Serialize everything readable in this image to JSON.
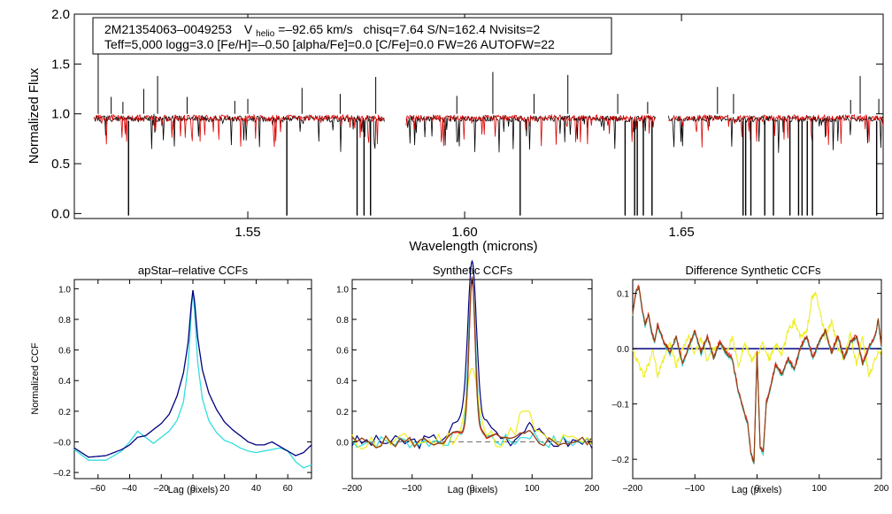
{
  "colors": {
    "spectrum": "#000000",
    "model": "#dd0000",
    "ccf_navy": "#00007f",
    "ccf_cyan": "#33dddd",
    "ccf_yellow": "#eeee22",
    "ccf_red": "#ee2222",
    "ccf_brown": "#8b4513",
    "zero_line": "#777777"
  },
  "chart_data": [
    {
      "type": "line",
      "id": "spectrum",
      "title": "",
      "xlabel": "Wavelength (microns)",
      "ylabel": "Normalized Flux",
      "xlim": [
        1.51,
        1.6965
      ],
      "ylim": [
        -0.05,
        2.0
      ],
      "xticks": [
        {
          "value": 1.55,
          "label": "1.55"
        },
        {
          "value": 1.6,
          "label": "1.60"
        },
        {
          "value": 1.65,
          "label": "1.65"
        }
      ],
      "yticks": [
        {
          "value": 0.0,
          "label": "0.0"
        },
        {
          "value": 0.5,
          "label": "0.5"
        },
        {
          "value": 1.0,
          "label": "1.0"
        },
        {
          "value": 1.5,
          "label": "1.5"
        },
        {
          "value": 2.0,
          "label": "2.0"
        }
      ],
      "info": {
        "star_id": "2M21354063–0049253",
        "v_prefix": "V",
        "v_sub": "helio",
        "v_value": "=–92.65 km/s",
        "rest_line1": "chisq=7.64  S/N=162.4  Nvisits=2",
        "line2": "Teff=5,000 logg=3.0 [Fe/H]=–0.50 [alpha/Fe]=0.0 [C/Fe]=0.0 FW=26 AUTOFW=22"
      },
      "segments": [
        [
          1.5145,
          1.5815
        ],
        [
          1.5865,
          1.644
        ],
        [
          1.647,
          1.6965
        ]
      ],
      "series": [
        {
          "name": "observed spectrum",
          "color": "spectrum",
          "continuum": 0.95
        },
        {
          "name": "best-fit model",
          "color": "model",
          "continuum": 0.96
        }
      ],
      "deep_lines": [
        1.5225,
        1.559,
        1.5752,
        1.5768,
        1.5783,
        1.6128,
        1.637,
        1.6392,
        1.6398,
        1.6412,
        1.6432,
        1.6642,
        1.6648,
        1.666,
        1.6692,
        1.6712,
        1.675,
        1.677,
        1.6778,
        1.679,
        1.6802,
        1.695
      ],
      "spikes": [
        {
          "x": 1.5155,
          "y": 1.8
        },
        {
          "x": 1.5185,
          "y": 1.17
        },
        {
          "x": 1.5212,
          "y": 1.12
        },
        {
          "x": 1.526,
          "y": 1.25
        },
        {
          "x": 1.5292,
          "y": 1.38
        },
        {
          "x": 1.536,
          "y": 1.17
        },
        {
          "x": 1.547,
          "y": 1.13
        },
        {
          "x": 1.55,
          "y": 1.15
        },
        {
          "x": 1.5625,
          "y": 1.26
        },
        {
          "x": 1.5713,
          "y": 1.2
        },
        {
          "x": 1.5795,
          "y": 1.37
        },
        {
          "x": 1.5982,
          "y": 1.18
        },
        {
          "x": 1.6065,
          "y": 1.42
        },
        {
          "x": 1.616,
          "y": 1.2
        },
        {
          "x": 1.6238,
          "y": 1.39
        },
        {
          "x": 1.6353,
          "y": 1.2
        },
        {
          "x": 1.6422,
          "y": 1.12
        },
        {
          "x": 1.6583,
          "y": 1.27
        },
        {
          "x": 1.662,
          "y": 1.2
        },
        {
          "x": 1.689,
          "y": 1.14
        },
        {
          "x": 1.6912,
          "y": 1.38
        },
        {
          "x": 1.6955,
          "y": 1.15
        }
      ]
    },
    {
      "type": "line",
      "id": "ccf_apstar",
      "title": "apStar–relative CCFs",
      "xlabel": "Lag (pixels)",
      "ylabel": "Normalized CCF",
      "xlim": [
        -75,
        75
      ],
      "ylim": [
        -0.24,
        1.06
      ],
      "xticks": [
        {
          "value": -60,
          "label": "–60"
        },
        {
          "value": -40,
          "label": "–40"
        },
        {
          "value": -20,
          "label": "–20"
        },
        {
          "value": 0,
          "label": "0"
        },
        {
          "value": 20,
          "label": "20"
        },
        {
          "value": 40,
          "label": "40"
        },
        {
          "value": 60,
          "label": "60"
        }
      ],
      "yticks": [
        {
          "value": -0.2,
          "label": "–0.2"
        },
        {
          "value": 0.0,
          "label": "–0.0"
        },
        {
          "value": 0.2,
          "label": "0.2"
        },
        {
          "value": 0.4,
          "label": "0.4"
        },
        {
          "value": 0.6,
          "label": "0.6"
        },
        {
          "value": 0.8,
          "label": "0.8"
        },
        {
          "value": 1.0,
          "label": "1.0"
        }
      ],
      "series": [
        {
          "name": "ccf-navy",
          "color": "ccf_navy",
          "x": [
            -75,
            -66,
            -55,
            -45,
            -40,
            -35,
            -30,
            -25,
            -20,
            -15,
            -10,
            -6,
            -3,
            -1,
            0,
            1,
            3,
            6,
            10,
            15,
            20,
            25,
            30,
            35,
            40,
            45,
            50,
            55,
            60,
            65,
            70,
            75
          ],
          "y": [
            -0.04,
            -0.1,
            -0.09,
            -0.05,
            -0.02,
            0.03,
            0.04,
            0.08,
            0.12,
            0.18,
            0.3,
            0.45,
            0.65,
            0.9,
            0.99,
            0.92,
            0.68,
            0.47,
            0.32,
            0.21,
            0.13,
            0.08,
            0.04,
            0.0,
            -0.02,
            -0.02,
            0.0,
            -0.03,
            -0.06,
            -0.09,
            -0.07,
            -0.02
          ]
        },
        {
          "name": "ccf-cyan",
          "color": "ccf_cyan",
          "x": [
            -75,
            -66,
            -55,
            -45,
            -40,
            -35,
            -30,
            -25,
            -20,
            -15,
            -10,
            -6,
            -3,
            -1,
            0,
            1,
            3,
            6,
            10,
            15,
            20,
            25,
            30,
            35,
            40,
            45,
            50,
            55,
            60,
            65,
            70,
            75
          ],
          "y": [
            -0.05,
            -0.12,
            -0.12,
            -0.06,
            0.0,
            0.07,
            0.03,
            -0.01,
            0.03,
            0.07,
            0.14,
            0.26,
            0.5,
            0.85,
            0.99,
            0.86,
            0.52,
            0.28,
            0.14,
            0.06,
            0.01,
            -0.01,
            -0.04,
            -0.06,
            -0.07,
            -0.06,
            -0.05,
            -0.04,
            -0.06,
            -0.13,
            -0.17,
            -0.15
          ]
        }
      ]
    },
    {
      "type": "line",
      "id": "ccf_synth",
      "title": "Synthetic CCFs",
      "xlabel": "Lag (pixels)",
      "ylabel": "",
      "xlim": [
        -200,
        200
      ],
      "ylim": [
        -0.24,
        1.06
      ],
      "xticks": [
        {
          "value": -200,
          "label": "–200"
        },
        {
          "value": -100,
          "label": "–100"
        },
        {
          "value": 0,
          "label": "0"
        },
        {
          "value": 100,
          "label": "100"
        },
        {
          "value": 200,
          "label": "200"
        }
      ],
      "yticks": [
        {
          "value": 0.0,
          "label": "0.0"
        },
        {
          "value": 0.2,
          "label": "0.2"
        },
        {
          "value": 0.4,
          "label": "0.4"
        },
        {
          "value": 0.6,
          "label": "0.6"
        },
        {
          "value": 0.8,
          "label": "0.8"
        },
        {
          "value": 1.0,
          "label": "1.0"
        }
      ],
      "zero_line": true,
      "series": [
        {
          "name": "ccf-navy",
          "color": "ccf_navy",
          "peak": 1.0,
          "width": 7,
          "wing": 0.18,
          "wingw": 28,
          "noise": 0.045,
          "seed": 3,
          "bump": {
            "x": 95,
            "h": 0.13,
            "w": 12
          }
        },
        {
          "name": "ccf-cyan",
          "color": "ccf_cyan",
          "peak": 0.99,
          "width": 6,
          "wing": 0.06,
          "wingw": 25,
          "noise": 0.045,
          "seed": 7,
          "bump": {
            "x": 95,
            "h": 0.05,
            "w": 12
          }
        },
        {
          "name": "ccf-yellow",
          "color": "ccf_yellow",
          "peak": 0.42,
          "width": 9,
          "wing": 0.06,
          "wingw": 30,
          "noise": 0.06,
          "seed": 11,
          "bump": {
            "x": 88,
            "h": 0.18,
            "w": 14
          }
        },
        {
          "name": "ccf-red",
          "color": "ccf_red",
          "peak": 0.98,
          "width": 5,
          "wing": 0.07,
          "wingw": 25,
          "noise": 0.04,
          "seed": 5,
          "bump": {
            "x": 95,
            "h": 0.05,
            "w": 12
          }
        },
        {
          "name": "ccf-brown",
          "color": "ccf_brown",
          "peak": 1.0,
          "width": 5,
          "wing": 0.08,
          "wingw": 25,
          "noise": 0.04,
          "seed": 5,
          "bump": {
            "x": 95,
            "h": 0.05,
            "w": 12
          }
        }
      ]
    },
    {
      "type": "line",
      "id": "ccf_diff",
      "title": "Difference Synthetic CCFs",
      "xlabel": "Lag (pixels)",
      "ylabel": "",
      "xlim": [
        -200,
        200
      ],
      "ylim": [
        -0.235,
        0.125
      ],
      "xticks": [
        {
          "value": -200,
          "label": "–200"
        },
        {
          "value": -100,
          "label": "–100"
        },
        {
          "value": 0,
          "label": "0"
        },
        {
          "value": 100,
          "label": "100"
        },
        {
          "value": 200,
          "label": "200"
        }
      ],
      "yticks": [
        {
          "value": -0.2,
          "label": "–0.2"
        },
        {
          "value": -0.1,
          "label": "–0.1"
        },
        {
          "value": 0.0,
          "label": "0.0"
        },
        {
          "value": 0.1,
          "label": "0.1"
        }
      ],
      "series": [
        {
          "name": "diff-navy",
          "color": "ccf_navy",
          "flat": 0.0
        },
        {
          "name": "diff-yellow",
          "color": "ccf_yellow",
          "x": [
            -200,
            -190,
            -182,
            -175,
            -168,
            -160,
            -150,
            -140,
            -130,
            -120,
            -110,
            -100,
            -90,
            -80,
            -70,
            -60,
            -50,
            -40,
            -30,
            -20,
            -10,
            0,
            10,
            20,
            30,
            40,
            50,
            60,
            70,
            80,
            88,
            95,
            102,
            110,
            120,
            130,
            140,
            150,
            160,
            170,
            180,
            190,
            200
          ],
          "y": [
            0.0,
            -0.03,
            -0.05,
            -0.03,
            0.0,
            -0.05,
            -0.02,
            0.01,
            -0.03,
            0.0,
            0.02,
            -0.01,
            0.02,
            -0.02,
            0.0,
            0.01,
            -0.01,
            0.02,
            -0.03,
            0.01,
            -0.02,
            -0.01,
            0.01,
            -0.02,
            0.01,
            -0.01,
            0.03,
            0.05,
            0.02,
            0.03,
            0.09,
            0.1,
            0.06,
            0.02,
            0.05,
            0.0,
            -0.02,
            0.03,
            -0.03,
            0.02,
            -0.05,
            -0.02,
            0.0
          ]
        },
        {
          "name": "diff-cyan",
          "color": "ccf_cyan",
          "shape": "diff",
          "offset": 0.0
        },
        {
          "name": "diff-red",
          "color": "ccf_red",
          "shape": "diff",
          "offset": 0.004
        },
        {
          "name": "diff-brown",
          "color": "ccf_brown",
          "shape": "diff",
          "offset": 0.002
        }
      ],
      "diff_shape": {
        "x": [
          -200,
          -195,
          -190,
          -185,
          -180,
          -175,
          -170,
          -165,
          -160,
          -150,
          -140,
          -130,
          -120,
          -110,
          -100,
          -90,
          -80,
          -70,
          -60,
          -50,
          -40,
          -35,
          -30,
          -25,
          -20,
          -15,
          -10,
          -5,
          0,
          5,
          10,
          15,
          20,
          30,
          40,
          50,
          60,
          70,
          80,
          90,
          100,
          110,
          120,
          130,
          140,
          150,
          160,
          170,
          180,
          190,
          195,
          200
        ],
        "y": [
          0.06,
          0.1,
          0.11,
          0.07,
          0.04,
          0.06,
          0.03,
          0.01,
          0.04,
          0.01,
          -0.01,
          0.02,
          -0.03,
          0.0,
          0.03,
          -0.01,
          0.02,
          -0.02,
          0.01,
          -0.01,
          -0.02,
          -0.05,
          -0.08,
          -0.1,
          -0.12,
          -0.14,
          -0.19,
          -0.21,
          -0.01,
          -0.18,
          -0.19,
          -0.1,
          -0.08,
          -0.03,
          -0.05,
          -0.02,
          -0.04,
          0.0,
          0.02,
          -0.02,
          0.01,
          0.03,
          -0.01,
          0.02,
          -0.02,
          0.01,
          0.02,
          -0.03,
          0.0,
          0.02,
          0.05,
          0.0
        ]
      }
    }
  ]
}
